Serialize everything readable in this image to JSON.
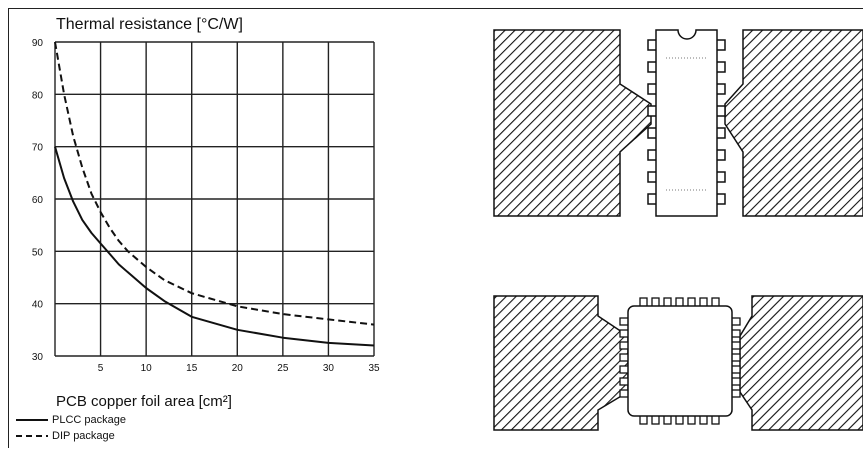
{
  "chart_data": {
    "type": "line",
    "title": "Thermal resistance  [°C/W]",
    "xlabel": "PCB copper foil area  [cm²]",
    "ylabel": "",
    "xlim": [
      0,
      35
    ],
    "ylim": [
      30,
      90
    ],
    "xticks": [
      "5",
      "10",
      "15",
      "20",
      "25",
      "30",
      "35"
    ],
    "yticks": [
      "30",
      "40",
      "50",
      "60",
      "70",
      "80",
      "90"
    ],
    "grid": true,
    "legend_position": "bottom-left",
    "series": [
      {
        "name": "PLCC package",
        "style": "solid",
        "x": [
          0,
          1,
          2,
          3,
          4,
          5,
          6,
          7,
          8,
          10,
          12,
          15,
          20,
          25,
          30,
          35
        ],
        "y": [
          70,
          64,
          59.5,
          56,
          53.5,
          51.5,
          49.5,
          47.5,
          46,
          43,
          40.5,
          37.5,
          35,
          33.5,
          32.5,
          32
        ]
      },
      {
        "name": "DIP package",
        "style": "dashed",
        "x": [
          0,
          1,
          2,
          3,
          4,
          5,
          6,
          7,
          8,
          10,
          12,
          15,
          20,
          25,
          30,
          35
        ],
        "y": [
          90,
          80,
          72,
          66,
          61,
          57.5,
          54.5,
          52,
          50,
          47,
          44.5,
          42,
          39.5,
          38,
          37,
          36
        ]
      }
    ]
  },
  "drawings": {
    "dip_footprint": "DIP package on PCB copper foil",
    "plcc_footprint": "PLCC package on PCB copper foil"
  }
}
